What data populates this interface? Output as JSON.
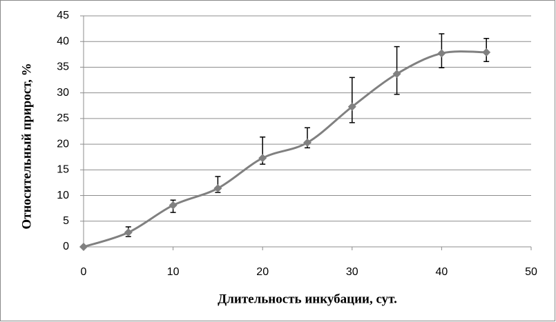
{
  "chart_data": {
    "type": "line",
    "x_label": "Длительность инкубации, сут.",
    "y_label": "Относительный прирост, %",
    "x": [
      0,
      5,
      10,
      15,
      20,
      25,
      30,
      35,
      40,
      45
    ],
    "series": [
      {
        "color": "#808080",
        "values": [
          0,
          2.8,
          8.1,
          11.4,
          17.3,
          20.3,
          27.3,
          33.7,
          37.7,
          37.9
        ],
        "error_plus": [
          0,
          1.1,
          1.0,
          2.3,
          4.1,
          2.9,
          5.7,
          5.3,
          3.8,
          2.7
        ],
        "error_minus": [
          0,
          0.8,
          1.4,
          0.8,
          1.2,
          1.0,
          3.1,
          4.0,
          2.8,
          1.8
        ]
      }
    ],
    "xlim": [
      0,
      50
    ],
    "xticks": [
      0,
      10,
      20,
      30,
      40,
      50
    ],
    "ylim": [
      0,
      45
    ],
    "yticks": [
      0,
      5,
      10,
      15,
      20,
      25,
      30,
      35,
      40,
      45
    ],
    "grid": true
  }
}
